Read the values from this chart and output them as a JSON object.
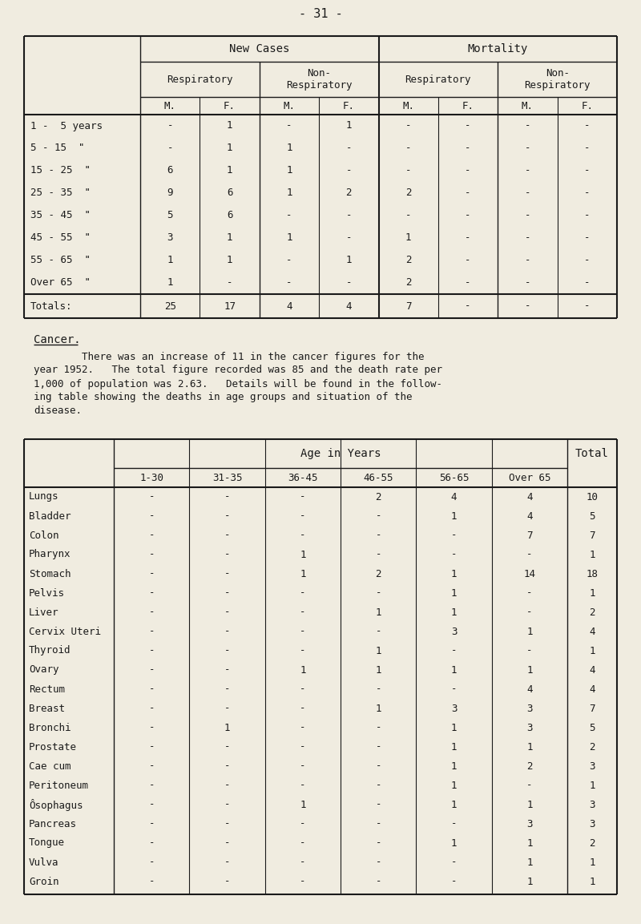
{
  "bg_color": "#f0ece0",
  "text_color": "#1a1a1a",
  "page_number": "- 31 -",
  "table1": {
    "age_groups": [
      "1 -  5 years",
      "5 - 15  \"",
      "15 - 25  \"",
      "25 - 35  \"",
      "35 - 45  \"",
      "45 - 55  \"",
      "55 - 65  \"",
      "Over 65  \""
    ],
    "data": [
      [
        "-",
        "1",
        "-",
        "1",
        "-",
        "-",
        "-",
        "-"
      ],
      [
        "-",
        "1",
        "1",
        "-",
        "-",
        "-",
        "-",
        "-"
      ],
      [
        "6",
        "1",
        "1",
        "-",
        "-",
        "-",
        "-",
        "-"
      ],
      [
        "9",
        "6",
        "1",
        "2",
        "2",
        "-",
        "-",
        "-"
      ],
      [
        "5",
        "6",
        "-",
        "-",
        "-",
        "-",
        "-",
        "-"
      ],
      [
        "3",
        "1",
        "1",
        "-",
        "1",
        "-",
        "-",
        "-"
      ],
      [
        "1",
        "1",
        "-",
        "1",
        "2",
        "-",
        "-",
        "-"
      ],
      [
        "1",
        "-",
        "-",
        "-",
        "2",
        "-",
        "-",
        "-"
      ]
    ],
    "totals": [
      "25",
      "17",
      "4",
      "4",
      "7",
      "-",
      "-",
      "-"
    ]
  },
  "cancer_heading": "Cancer.",
  "cancer_para_line1": "        There was an increase of 11 in the cancer figures for the",
  "cancer_para_line2": "year 1952.   The total figure recorded was 85 and the death rate per",
  "cancer_para_line3": "1,000 of population was 2.63.   Details will be found in the follow-",
  "cancer_para_line4": "ing table showing the deaths in age groups and situation of the",
  "cancer_para_line5": "disease.",
  "table2": {
    "age_cols": [
      "1-30",
      "31-35",
      "36-45",
      "46-55",
      "56-65",
      "Over 65"
    ],
    "total_col": "Total",
    "age_header": "Age in Years",
    "rows": [
      [
        "Lungs",
        "-",
        "-",
        "-",
        "2",
        "4",
        "4",
        "10"
      ],
      [
        "Bladder",
        "-",
        "-",
        "-",
        "-",
        "1",
        "4",
        "5"
      ],
      [
        "Colon",
        "-",
        "-",
        "-",
        "-",
        "-",
        "7",
        "7"
      ],
      [
        "Pharynx",
        "-",
        "-",
        "1",
        "-",
        "-",
        "-",
        "1"
      ],
      [
        "Stomach",
        "-",
        "-",
        "1",
        "2",
        "1",
        "14",
        "18"
      ],
      [
        "Pelvis",
        "-",
        "-",
        "-",
        "-",
        "1",
        "-",
        "1"
      ],
      [
        "Liver",
        "-",
        "-",
        "-",
        "1",
        "1",
        "-",
        "2"
      ],
      [
        "Cervix Uteri",
        "-",
        "-",
        "-",
        "-",
        "3",
        "1",
        "4"
      ],
      [
        "Thyroid",
        "-",
        "-",
        "-",
        "1",
        "-",
        "-",
        "1"
      ],
      [
        "Ovary",
        "-",
        "-",
        "1",
        "1",
        "1",
        "1",
        "4"
      ],
      [
        "Rectum",
        "-",
        "-",
        "-",
        "-",
        "-",
        "4",
        "4"
      ],
      [
        "Breast",
        "-",
        "-",
        "-",
        "1",
        "3",
        "3",
        "7"
      ],
      [
        "Bronchi",
        "-",
        "1",
        "-",
        "-",
        "1",
        "3",
        "5"
      ],
      [
        "Prostate",
        "-",
        "-",
        "-",
        "-",
        "1",
        "1",
        "2"
      ],
      [
        "Cae cum",
        "-",
        "-",
        "-",
        "-",
        "1",
        "2",
        "3"
      ],
      [
        "Peritoneum",
        "-",
        "-",
        "-",
        "-",
        "1",
        "-",
        "1"
      ],
      [
        "Ôsophagus",
        "-",
        "-",
        "1",
        "-",
        "1",
        "1",
        "3"
      ],
      [
        "Pancreas",
        "-",
        "-",
        "-",
        "-",
        "-",
        "3",
        "3"
      ],
      [
        "Tongue",
        "-",
        "-",
        "-",
        "-",
        "1",
        "1",
        "2"
      ],
      [
        "Vulva",
        "-",
        "-",
        "-",
        "-",
        "-",
        "1",
        "1"
      ],
      [
        "Groin",
        "-",
        "-",
        "-",
        "-",
        "-",
        "1",
        "1"
      ]
    ]
  }
}
